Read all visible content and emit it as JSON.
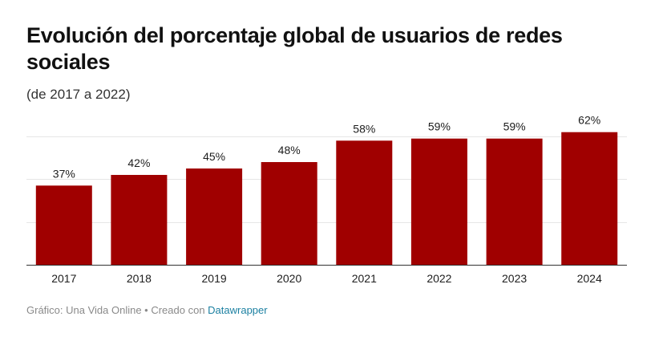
{
  "title": "Evolución del porcentaje global de usuarios de redes sociales",
  "subtitle": "(de 2017 a 2022)",
  "footer": {
    "prefix": "Gráfico: Una Vida Online • Creado con ",
    "link": "Datawrapper"
  },
  "colors": {
    "bar": "#a00000",
    "grid": "#e6e6e6",
    "axis": "#333333",
    "link": "#1d81a2"
  },
  "chart_data": {
    "type": "bar",
    "title": "Evolución del porcentaje global de usuarios de redes sociales",
    "subtitle": "(de 2017 a 2022)",
    "categories": [
      "2017",
      "2018",
      "2019",
      "2020",
      "2021",
      "2022",
      "2023",
      "2024"
    ],
    "values": [
      37,
      42,
      45,
      48,
      58,
      59,
      59,
      62
    ],
    "labels": [
      "37%",
      "42%",
      "45%",
      "48%",
      "58%",
      "59%",
      "59%",
      "62%"
    ],
    "ylim": [
      0,
      60
    ],
    "gridlines": [
      0,
      20,
      40,
      60
    ],
    "grid": true,
    "xlabel": "",
    "ylabel": ""
  }
}
